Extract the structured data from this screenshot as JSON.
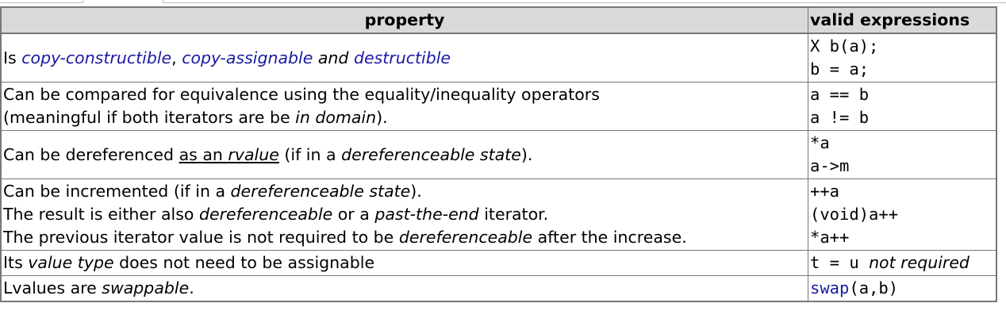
{
  "table": {
    "headers": {
      "property": "property",
      "expressions": "valid expressions"
    },
    "rows": [
      {
        "property": {
          "prefix": "Is ",
          "link1": "copy-constructible",
          "sep1": ", ",
          "link2": "copy-assignable",
          "sep2": " and ",
          "link3": "destructible"
        },
        "expressions": [
          "X b(a);",
          "b = a;"
        ]
      },
      {
        "property": {
          "line1": "Can be compared for equivalence using the equality/inequality operators",
          "line2_prefix": "(meaningful if both iterators are be ",
          "line2_em": "in domain",
          "line2_suffix": ")."
        },
        "expressions": [
          "a == b",
          "a != b"
        ]
      },
      {
        "property": {
          "prefix": "Can be dereferenced ",
          "underline_plain": "as an ",
          "underline_em": "rvalue",
          "middle": " (if in a ",
          "em": "dereferenceable state",
          "suffix": ")."
        },
        "expressions": [
          "*a",
          "a->m"
        ]
      },
      {
        "property": {
          "line1_prefix": "Can be incremented (if in a ",
          "line1_em": "dereferenceable state",
          "line1_suffix": ").",
          "line2_prefix": "The result is either also ",
          "line2_em1": "dereferenceable",
          "line2_mid": " or a ",
          "line2_em2": "past-the-end",
          "line2_suffix": " iterator.",
          "line3_prefix": "The previous iterator value is not required to be ",
          "line3_em": "dereferenceable",
          "line3_suffix": " after the increase."
        },
        "expressions": [
          "++a",
          "(void)a++",
          "*a++"
        ]
      },
      {
        "property": {
          "prefix": "Its ",
          "em": "value type",
          "suffix": " does not need to be assignable"
        },
        "expressions": {
          "code": "t = u",
          "note": "not required"
        }
      },
      {
        "property": {
          "prefix": "Lvalues are ",
          "em": "swappable",
          "suffix": "."
        },
        "expressions": {
          "fn": "swap",
          "args": "(a,b)"
        }
      }
    ]
  },
  "colors": {
    "link": "#1a1aa6",
    "header_bg": "#d9d9d9",
    "border": "#777777"
  }
}
